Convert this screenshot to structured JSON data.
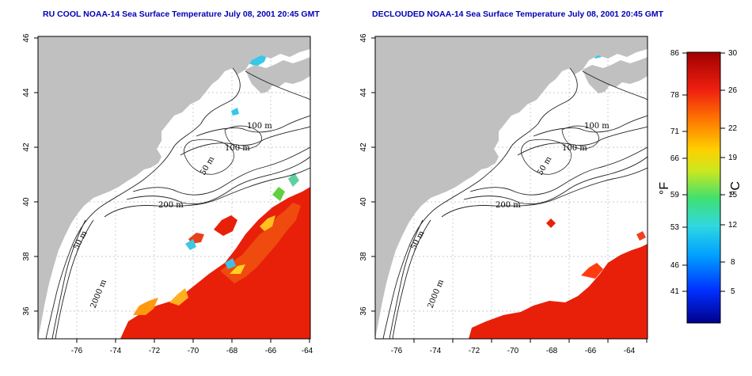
{
  "titles": {
    "left": "RU COOL NOAA-14 Sea Surface Temperature July 08, 2001 20:45 GMT",
    "right": "DECLOUDED NOAA-14 Sea Surface Temperature July 08, 2001 20:45 GMT"
  },
  "axes": {
    "x_ticks": [
      "-76",
      "-74",
      "-72",
      "-70",
      "-68",
      "-66",
      "-64"
    ],
    "y_ticks": [
      "46",
      "44",
      "42",
      "40",
      "38",
      "36"
    ]
  },
  "contour_labels": [
    "100 m",
    "100 m",
    "50 m",
    "200 m",
    "50 m",
    "2000 m"
  ],
  "colorbar": {
    "fahrenheit_ticks": [
      "86",
      "78",
      "71",
      "66",
      "59",
      "53",
      "46",
      "41"
    ],
    "celsius_ticks": [
      "30",
      "26",
      "22",
      "19",
      "15",
      "12",
      "8",
      "5"
    ],
    "fahrenheit_unit": "°F",
    "celsius_unit": "°C",
    "range_c": [
      1,
      30
    ]
  },
  "colors": {
    "land": "#c0c0c0",
    "ocean": "#ffffff",
    "title": "#0000b4",
    "warm": "#e8200a",
    "cool": "#38c8e8"
  }
}
